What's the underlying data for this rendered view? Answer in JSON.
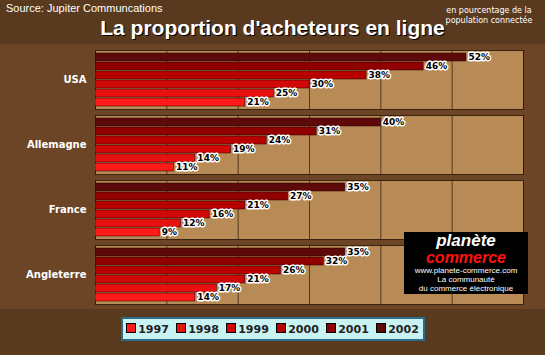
{
  "chart_data": {
    "type": "bar",
    "title": "La proportion d'acheteurs en ligne",
    "subtitle": "en pourcentage de la population connectée",
    "annotations": [
      "Source: Jupiter Communcations",
      "planète",
      "commerce",
      "www.planete-commerce.com",
      "La communauté",
      "du commerce électronique"
    ],
    "orientation": "horizontal",
    "categories": [
      "USA",
      "Allemagne",
      "France",
      "Angleterre"
    ],
    "series": [
      {
        "name": "1997",
        "color": "#ff1a1a",
        "values": [
          21,
          11,
          9,
          14
        ],
        "value_labels": [
          "21%",
          "11%",
          "9%",
          "14%"
        ]
      },
      {
        "name": "1998",
        "color": "#e81010",
        "values": [
          25,
          14,
          12,
          17
        ],
        "value_labels": [
          "25%",
          "14%",
          "12%",
          "17%"
        ]
      },
      {
        "name": "1999",
        "color": "#d00808",
        "values": [
          30,
          19,
          16,
          21
        ],
        "value_labels": [
          "30%",
          "19%",
          "16%",
          "21%"
        ]
      },
      {
        "name": "2000",
        "color": "#b80000",
        "values": [
          38,
          24,
          21,
          26
        ],
        "value_labels": [
          "38%",
          "24%",
          "21%",
          "26%"
        ]
      },
      {
        "name": "2001",
        "color": "#900000",
        "values": [
          46,
          31,
          27,
          32
        ],
        "value_labels": [
          "46%",
          "31%",
          "27%",
          "32%"
        ]
      },
      {
        "name": "2002",
        "color": "#5e0a0a",
        "values": [
          52,
          40,
          35,
          35
        ],
        "value_labels": [
          "52%",
          "40%",
          "35%",
          "35%"
        ]
      }
    ],
    "xlim": [
      0,
      60
    ],
    "xticks": [
      0,
      10,
      20,
      30,
      40,
      50,
      60
    ],
    "grid": true,
    "data_labels": true,
    "tick_labels": "y",
    "legend": "bottom"
  }
}
